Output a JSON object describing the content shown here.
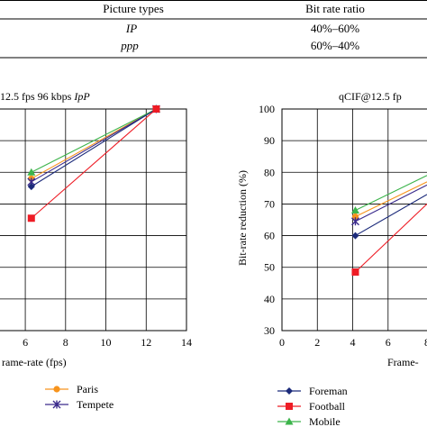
{
  "table": {
    "headers": [
      "Picture types",
      "Bit rate ratio"
    ],
    "rows": [
      [
        "IP",
        "40%–60%"
      ],
      [
        "ppp",
        "60%–40%"
      ]
    ]
  },
  "colors": {
    "Paris": "#f7941d",
    "Tempete": "#3a2a8c",
    "Foreman": "#1b2a7a",
    "Football": "#ee1c25",
    "Mobile": "#3cb44b",
    "line_left_top": "#3cb44b",
    "line_left_mid": "#6a3a9c",
    "line_left_low": "#1b2a7a"
  },
  "chart_data": [
    {
      "type": "line",
      "title_prefix": "12.5 fps 96 kbps ",
      "title_italic": "IpP",
      "xlabel": "rame-rate (fps)",
      "ylabel": "",
      "xlim": [
        4.7,
        14
      ],
      "ylim": [
        30,
        100
      ],
      "x_ticks": [
        6,
        8,
        10,
        12,
        14
      ],
      "grid": true,
      "legend": "bottom",
      "series": [
        {
          "name": "Paris",
          "marker": "circle",
          "x": [
            6.3,
            12.5
          ],
          "y": [
            78,
            100
          ]
        },
        {
          "name": "Tempete",
          "marker": "asterisk",
          "x": [
            6.3,
            12.5
          ],
          "y": [
            77,
            100
          ]
        },
        {
          "name": "",
          "marker": "triangle",
          "x": [
            6.3,
            12.5
          ],
          "y": [
            80,
            100
          ],
          "colorKey": "line_left_top"
        },
        {
          "name": "",
          "marker": "diamond",
          "x": [
            6.3,
            12.5
          ],
          "y": [
            75.5,
            100
          ],
          "colorKey": "line_left_low"
        },
        {
          "name": "",
          "marker": "square",
          "x": [
            6.3,
            12.5
          ],
          "y": [
            65.5,
            100
          ],
          "colorKey": "Football"
        }
      ]
    },
    {
      "type": "line",
      "title": "qCIF@12.5 fp",
      "xlabel": "Frame-",
      "ylabel": "Bit-rate reduction (%)",
      "xlim": [
        0,
        8.2
      ],
      "ylim": [
        30,
        100
      ],
      "x_ticks": [
        0,
        2,
        4,
        6
      ],
      "x_tick_partial": "8",
      "y_ticks": [
        30,
        40,
        50,
        60,
        70,
        80,
        90,
        100
      ],
      "grid": true,
      "legend": "bottom",
      "series": [
        {
          "name": "Foreman",
          "marker": "diamond",
          "x": [
            4.15,
            8.2
          ],
          "y": [
            60,
            73
          ]
        },
        {
          "name": "Football",
          "marker": "square",
          "x": [
            4.15,
            8.2
          ],
          "y": [
            48.5,
            70
          ]
        },
        {
          "name": "Mobile",
          "marker": "triangle",
          "x": [
            4.15,
            8.2
          ],
          "y": [
            68,
            79
          ]
        },
        {
          "name": "",
          "marker": "circle",
          "x": [
            4.15,
            8.2
          ],
          "y": [
            66,
            77
          ],
          "colorKey": "Paris"
        },
        {
          "name": "",
          "marker": "asterisk",
          "x": [
            4.15,
            8.2
          ],
          "y": [
            64.5,
            76
          ],
          "colorKey": "Tempete"
        }
      ]
    }
  ]
}
